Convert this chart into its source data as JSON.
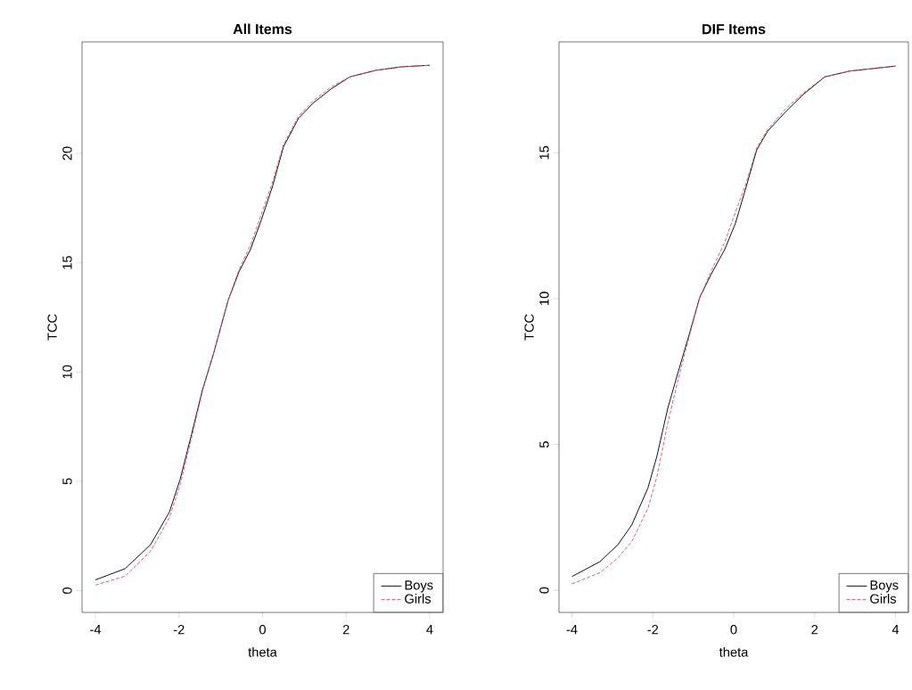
{
  "chart_data": [
    {
      "type": "line",
      "title": "All Items",
      "xlabel": "theta",
      "ylabel": "TCC",
      "xlim": [
        -4.32,
        4.32
      ],
      "ylim": [
        -1.0,
        25.1
      ],
      "xticks": [
        -4,
        -2,
        0,
        2,
        4
      ],
      "yticks": [
        0,
        5,
        10,
        15,
        20
      ],
      "legend": "bottom right",
      "grid": false,
      "series": [
        {
          "name": "Boys",
          "color": "#000000",
          "line_style": "solid",
          "x": [
            -4,
            -3.29,
            -2.68,
            -2.23,
            -1.97,
            -1.7,
            -1.44,
            -1.17,
            -0.82,
            -0.56,
            -0.29,
            -0.03,
            0.24,
            0.5,
            0.86,
            1.21,
            1.65,
            2.09,
            2.71,
            3.33,
            4
          ],
          "values": [
            0.49,
            1.0,
            2.1,
            3.59,
            5.1,
            7.14,
            9.17,
            10.86,
            13.3,
            14.6,
            15.6,
            16.95,
            18.5,
            20.3,
            21.6,
            22.3,
            22.96,
            23.5,
            23.8,
            23.96,
            24.03
          ]
        },
        {
          "name": "Girls",
          "color": "#df536b",
          "line_style": "dashed",
          "x": [
            -4,
            -3.29,
            -2.68,
            -2.23,
            -1.97,
            -1.7,
            -1.44,
            -1.17,
            -0.82,
            -0.56,
            -0.29,
            -0.03,
            0.24,
            0.5,
            0.86,
            1.21,
            1.65,
            2.09,
            2.71,
            3.33,
            4
          ],
          "values": [
            0.25,
            0.66,
            1.8,
            3.33,
            4.86,
            6.97,
            9.1,
            10.86,
            13.3,
            14.7,
            15.8,
            17.2,
            18.7,
            20.4,
            21.7,
            22.4,
            23.05,
            23.5,
            23.8,
            23.96,
            24.03
          ]
        }
      ]
    },
    {
      "type": "line",
      "title": "DIF Items",
      "xlabel": "theta",
      "ylabel": "TCC",
      "xlim": [
        -4.32,
        4.32
      ],
      "ylim": [
        -0.76,
        18.8
      ],
      "xticks": [
        -4,
        -2,
        0,
        2,
        4
      ],
      "yticks": [
        0,
        5,
        10,
        15
      ],
      "legend": "bottom right",
      "grid": false,
      "series": [
        {
          "name": "Boys",
          "color": "#000000",
          "line_style": "solid",
          "x": [
            -4,
            -3.31,
            -2.87,
            -2.52,
            -2.12,
            -1.9,
            -1.63,
            -1.37,
            -1.1,
            -0.84,
            -0.57,
            -0.22,
            0.04,
            0.31,
            0.57,
            0.84,
            1.28,
            1.72,
            2.25,
            2.87,
            4
          ],
          "values": [
            0.47,
            0.98,
            1.55,
            2.24,
            3.51,
            4.59,
            6.24,
            7.5,
            8.77,
            10.04,
            10.8,
            11.69,
            12.57,
            13.84,
            15.1,
            15.74,
            16.4,
            17.0,
            17.6,
            17.8,
            17.97
          ]
        },
        {
          "name": "Girls",
          "color": "#df536b",
          "line_style": "dashed",
          "x": [
            -4,
            -3.31,
            -2.87,
            -2.52,
            -2.12,
            -1.9,
            -1.63,
            -1.37,
            -1.1,
            -0.84,
            -0.57,
            -0.22,
            0.04,
            0.31,
            0.57,
            0.84,
            1.28,
            1.72,
            2.25,
            2.87,
            4
          ],
          "values": [
            0.22,
            0.6,
            1.1,
            1.67,
            2.81,
            3.89,
            5.73,
            7.25,
            8.7,
            10.04,
            10.9,
            11.94,
            12.95,
            13.97,
            15.17,
            15.8,
            16.5,
            17.05,
            17.6,
            17.8,
            17.97
          ]
        }
      ]
    }
  ]
}
